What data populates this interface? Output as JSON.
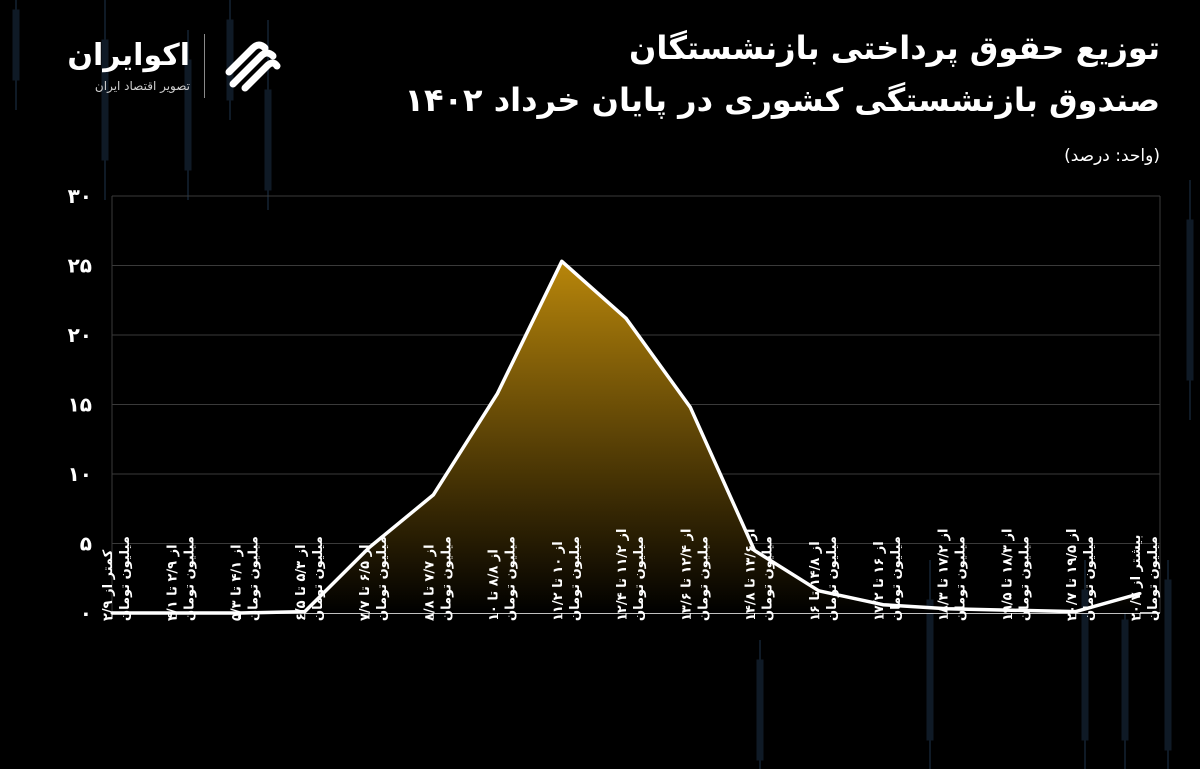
{
  "brand": {
    "name": "اکوایران",
    "tagline": "تصویر اقتصاد ایران"
  },
  "header": {
    "title_line1": "توزیع حقوق پرداختی بازنشستگان",
    "title_line2": "صندوق بازنشستگی کشوری در پایان خرداد ۱۴۰۲",
    "unit": "(واحد: درصد)"
  },
  "colors": {
    "background": "#000000",
    "line": "#ffffff",
    "fill_top": "#b8860b",
    "fill_bottom": "#000000",
    "grid": "#3a3a3a"
  },
  "chart_data": {
    "type": "area",
    "title": "توزیع حقوق پرداختی بازنشستگان صندوق بازنشستگی کشوری در پایان خرداد ۱۴۰۲",
    "ylabel": "",
    "xlabel": "",
    "ylim": [
      0,
      30
    ],
    "y_ticks": [
      "۰",
      "۵",
      "۱۰",
      "۱۵",
      "۲۰",
      "۲۵",
      "۳۰"
    ],
    "grid": true,
    "categories": [
      [
        "کمتر از ۲/۹",
        "میلیون تومان"
      ],
      [
        "از ۲/۹ تا ۴/۱",
        "میلیون تومان"
      ],
      [
        "از ۴/۱ تا ۵/۳",
        "میلیون تومان"
      ],
      [
        "از ۵/۳ تا ۶/۵",
        "میلیون تومان"
      ],
      [
        "از ۶/۵ تا ۷/۷",
        "میلیون تومان"
      ],
      [
        "از ۷/۷ تا ۸/۸",
        "میلیون تومان"
      ],
      [
        "از ۸/۸ تا ۱۰",
        "میلیون تومان"
      ],
      [
        "از ۱۰ تا ۱۱/۲",
        "میلیون تومان"
      ],
      [
        "از ۱۱/۲ تا ۱۲/۴",
        "میلیون تومان"
      ],
      [
        "از ۱۲/۴ تا ۱۳/۶",
        "میلیون تومان"
      ],
      [
        "از ۱۳/۶ تا ۱۴/۸",
        "میلیون تومان"
      ],
      [
        "از ۱۴/۸ تا ۱۶",
        "میلیون تومان"
      ],
      [
        "از ۱۶ تا ۱۷/۲",
        "میلیون تومان"
      ],
      [
        "از ۱۷/۲ تا ۱۸/۳",
        "میلیون تومان"
      ],
      [
        "از ۱۸/۳ تا ۱۹/۵",
        "میلیون تومان"
      ],
      [
        "از ۱۹/۵ تا ۲۰/۷",
        "میلیون تومان"
      ],
      [
        "بیشتر از ۲۰/۷",
        "میلیون تومان"
      ]
    ],
    "values": [
      0.0,
      0.0,
      0.0,
      0.1,
      4.7,
      8.5,
      15.8,
      25.3,
      21.2,
      14.8,
      4.5,
      1.6,
      0.6,
      0.3,
      0.2,
      0.1,
      1.4
    ]
  }
}
